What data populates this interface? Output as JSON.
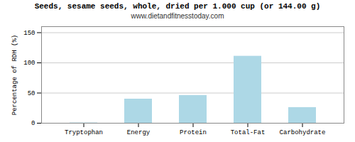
{
  "chart_data": {
    "type": "bar",
    "title": "Seeds, sesame seeds, whole, dried per 1.000 cup (or 144.00 g)",
    "subtitle": "www.dietandfitnesstoday.com",
    "categories": [
      "Tryptophan",
      "Energy",
      "Protein",
      "Total-Fat",
      "Carbohydrate"
    ],
    "values": [
      0.5,
      40,
      46,
      111,
      26
    ],
    "color": "#add8e6",
    "ylabel": "Percentage of RDH (%)",
    "ylim": [
      0,
      160
    ],
    "yticks": [
      0,
      50,
      100,
      150
    ],
    "grid": true
  }
}
